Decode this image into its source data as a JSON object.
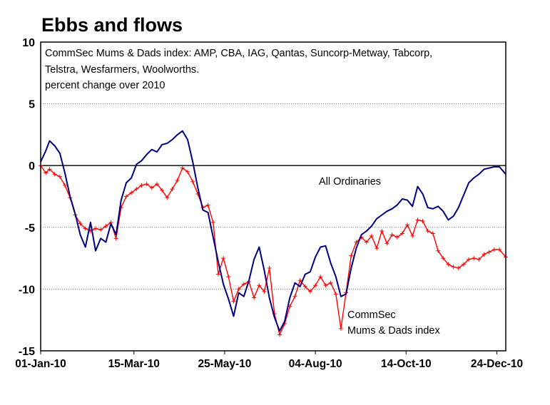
{
  "chart_data": {
    "type": "line",
    "title": "Ebbs and flows",
    "subtitle": [
      "CommSec Mums & Dads index: AMP, CBA, IAG, Qantas,  Suncorp-Metway, Tabcorp,",
      "Telstra, Wesfarmers, Woolworths.",
      "percent change over 2010"
    ],
    "xlabel": "",
    "ylabel": "",
    "ylim": [
      -15,
      10
    ],
    "xlim": [
      "01-Jan-10",
      "31-Dec-10"
    ],
    "y_ticks": [
      "10",
      "5",
      "0",
      "-5",
      "-10",
      "-15"
    ],
    "x_ticks": [
      "01-Jan-10",
      "15-Mar-10",
      "25-May-10",
      "04-Aug-10",
      "14-Oct-10",
      "24-Dec-10"
    ],
    "grid": "horizontal dotted",
    "annotations": [
      "All Ordinaries",
      "CommSec",
      "Mums & Dads index"
    ],
    "series": [
      {
        "name": "All Ordinaries",
        "color": "#000080",
        "x": [
          "2010-01-01",
          "2010-01-05",
          "2010-01-08",
          "2010-01-12",
          "2010-01-16",
          "2010-01-20",
          "2010-01-24",
          "2010-01-28",
          "2010-02-01",
          "2010-02-05",
          "2010-02-09",
          "2010-02-13",
          "2010-02-17",
          "2010-02-21",
          "2010-02-25",
          "2010-03-01",
          "2010-03-05",
          "2010-03-09",
          "2010-03-13",
          "2010-03-17",
          "2010-03-21",
          "2010-03-25",
          "2010-03-29",
          "2010-04-02",
          "2010-04-06",
          "2010-04-10",
          "2010-04-14",
          "2010-04-18",
          "2010-04-22",
          "2010-04-26",
          "2010-04-30",
          "2010-05-04",
          "2010-05-08",
          "2010-05-12",
          "2010-05-16",
          "2010-05-20",
          "2010-05-24",
          "2010-05-28",
          "2010-06-01",
          "2010-06-05",
          "2010-06-09",
          "2010-06-13",
          "2010-06-17",
          "2010-06-21",
          "2010-06-25",
          "2010-06-29",
          "2010-07-03",
          "2010-07-07",
          "2010-07-11",
          "2010-07-15",
          "2010-07-19",
          "2010-07-23",
          "2010-07-27",
          "2010-07-31",
          "2010-08-04",
          "2010-08-08",
          "2010-08-12",
          "2010-08-16",
          "2010-08-20",
          "2010-08-24",
          "2010-08-28",
          "2010-09-01",
          "2010-09-05",
          "2010-09-09",
          "2010-09-13",
          "2010-09-17",
          "2010-09-21",
          "2010-09-25",
          "2010-09-29",
          "2010-10-03",
          "2010-10-07",
          "2010-10-11",
          "2010-10-15",
          "2010-10-19",
          "2010-10-23",
          "2010-10-27",
          "2010-10-31",
          "2010-11-04",
          "2010-11-08",
          "2010-11-12",
          "2010-11-16",
          "2010-11-20",
          "2010-11-24",
          "2010-11-28",
          "2010-12-02",
          "2010-12-06",
          "2010-12-10",
          "2010-12-14",
          "2010-12-18",
          "2010-12-22",
          "2010-12-26",
          "2010-12-31"
        ],
        "values": [
          0.3,
          1.2,
          2.0,
          1.6,
          1.0,
          -0.6,
          -2.5,
          -3.9,
          -5.6,
          -6.6,
          -4.6,
          -6.9,
          -5.9,
          -6.2,
          -4.7,
          -5.6,
          -2.8,
          -1.4,
          -1.0,
          0.1,
          0.4,
          0.9,
          1.3,
          1.1,
          1.7,
          1.8,
          2.1,
          2.5,
          2.8,
          2.1,
          0.3,
          -1.8,
          -3.6,
          -3.8,
          -5.8,
          -7.8,
          -9.6,
          -10.8,
          -12.2,
          -10.3,
          -10.6,
          -9.3,
          -7.6,
          -6.6,
          -8.5,
          -10.7,
          -12.3,
          -13.4,
          -12.6,
          -10.7,
          -9.5,
          -9.8,
          -8.8,
          -8.6,
          -7.4,
          -6.6,
          -6.5,
          -7.9,
          -9.0,
          -10.6,
          -10.4,
          -8.3,
          -6.7,
          -5.6,
          -5.3,
          -4.9,
          -4.3,
          -4.0,
          -3.7,
          -3.5,
          -3.2,
          -2.7,
          -2.8,
          -3.3,
          -1.7,
          -2.3,
          -3.4,
          -3.5,
          -3.3,
          -3.7,
          -4.4,
          -4.1,
          -3.4,
          -2.4,
          -1.4,
          -1.0,
          -0.7,
          -0.3,
          -0.2,
          -0.1,
          -0.1,
          -0.7
        ]
      },
      {
        "name": "CommSec Mums & Dads index",
        "color": "#ff0000",
        "x": [
          "2010-01-01",
          "2010-01-05",
          "2010-01-08",
          "2010-01-12",
          "2010-01-16",
          "2010-01-20",
          "2010-01-24",
          "2010-01-28",
          "2010-02-01",
          "2010-02-05",
          "2010-02-09",
          "2010-02-13",
          "2010-02-17",
          "2010-02-21",
          "2010-02-25",
          "2010-03-01",
          "2010-03-05",
          "2010-03-09",
          "2010-03-13",
          "2010-03-17",
          "2010-03-21",
          "2010-03-25",
          "2010-03-29",
          "2010-04-02",
          "2010-04-06",
          "2010-04-10",
          "2010-04-14",
          "2010-04-18",
          "2010-04-22",
          "2010-04-26",
          "2010-04-30",
          "2010-05-04",
          "2010-05-08",
          "2010-05-12",
          "2010-05-16",
          "2010-05-20",
          "2010-05-24",
          "2010-05-28",
          "2010-06-01",
          "2010-06-05",
          "2010-06-09",
          "2010-06-13",
          "2010-06-17",
          "2010-06-21",
          "2010-06-25",
          "2010-06-29",
          "2010-07-03",
          "2010-07-07",
          "2010-07-11",
          "2010-07-15",
          "2010-07-19",
          "2010-07-23",
          "2010-07-27",
          "2010-07-31",
          "2010-08-04",
          "2010-08-08",
          "2010-08-12",
          "2010-08-16",
          "2010-08-20",
          "2010-08-24",
          "2010-08-28",
          "2010-09-01",
          "2010-09-05",
          "2010-09-09",
          "2010-09-13",
          "2010-09-17",
          "2010-09-21",
          "2010-09-25",
          "2010-09-29",
          "2010-10-03",
          "2010-10-07",
          "2010-10-11",
          "2010-10-15",
          "2010-10-19",
          "2010-10-23",
          "2010-10-27",
          "2010-10-31",
          "2010-11-04",
          "2010-11-08",
          "2010-11-12",
          "2010-11-16",
          "2010-11-20",
          "2010-11-24",
          "2010-11-28",
          "2010-12-02",
          "2010-12-06",
          "2010-12-10",
          "2010-12-14",
          "2010-12-18",
          "2010-12-22",
          "2010-12-26",
          "2010-12-31"
        ],
        "values": [
          0.0,
          -0.6,
          -0.3,
          -0.7,
          -0.9,
          -1.6,
          -2.6,
          -4.0,
          -4.7,
          -5.1,
          -5.3,
          -5.1,
          -5.2,
          -4.9,
          -4.6,
          -5.9,
          -3.4,
          -2.5,
          -2.2,
          -1.9,
          -1.6,
          -1.5,
          -1.8,
          -1.5,
          -2.0,
          -2.6,
          -1.9,
          -1.2,
          -0.2,
          -0.5,
          -1.3,
          -2.3,
          -3.4,
          -3.2,
          -4.6,
          -8.8,
          -7.5,
          -9.0,
          -11.0,
          -10.0,
          -9.6,
          -9.4,
          -10.7,
          -9.7,
          -10.2,
          -8.3,
          -12.0,
          -13.7,
          -12.8,
          -11.4,
          -10.6,
          -9.3,
          -9.8,
          -10.2,
          -9.7,
          -9.0,
          -9.7,
          -9.5,
          -10.4,
          -13.2,
          -10.3,
          -7.3,
          -6.2,
          -5.8,
          -6.2,
          -5.7,
          -6.7,
          -5.3,
          -6.3,
          -5.6,
          -5.8,
          -5.5,
          -4.8,
          -5.7,
          -4.4,
          -4.5,
          -5.3,
          -5.5,
          -6.9,
          -7.5,
          -8.0,
          -8.2,
          -8.3,
          -8.0,
          -7.6,
          -7.5,
          -7.6,
          -7.2,
          -7.0,
          -6.8,
          -6.8,
          -7.4
        ]
      }
    ]
  }
}
